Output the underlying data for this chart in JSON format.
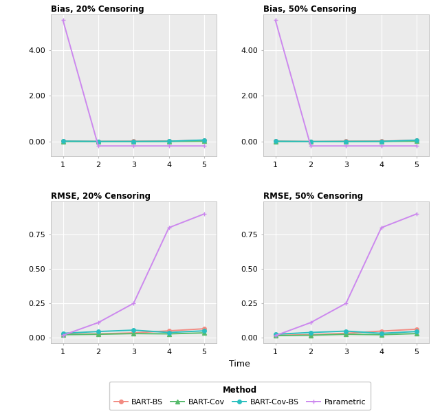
{
  "time": [
    1,
    2,
    3,
    4,
    5
  ],
  "bias_20": {
    "BART-BS": [
      0.005,
      0.0,
      0.005,
      0.01,
      0.05
    ],
    "BART-Cov": [
      -0.005,
      -0.01,
      -0.01,
      -0.005,
      0.005
    ],
    "BART-Cov-BS": [
      0.01,
      0.0,
      0.0,
      0.005,
      0.06
    ],
    "Parametric": [
      5.3,
      -0.2,
      -0.2,
      -0.2,
      -0.2
    ]
  },
  "bias_50": {
    "BART-BS": [
      0.005,
      -0.005,
      0.005,
      0.01,
      0.05
    ],
    "BART-Cov": [
      -0.005,
      -0.01,
      -0.01,
      -0.005,
      0.005
    ],
    "BART-Cov-BS": [
      0.005,
      -0.005,
      0.0,
      0.0,
      0.05
    ],
    "Parametric": [
      5.3,
      -0.2,
      -0.2,
      -0.2,
      -0.2
    ]
  },
  "rmse_20": {
    "BART-BS": [
      0.025,
      0.028,
      0.035,
      0.05,
      0.065
    ],
    "BART-Cov": [
      0.022,
      0.025,
      0.03,
      0.028,
      0.035
    ],
    "BART-Cov-BS": [
      0.032,
      0.045,
      0.055,
      0.038,
      0.05
    ],
    "Parametric": [
      0.018,
      0.11,
      0.25,
      0.8,
      0.9
    ]
  },
  "rmse_50": {
    "BART-BS": [
      0.018,
      0.022,
      0.032,
      0.048,
      0.062
    ],
    "BART-Cov": [
      0.015,
      0.018,
      0.025,
      0.022,
      0.03
    ],
    "BART-Cov-BS": [
      0.025,
      0.038,
      0.048,
      0.032,
      0.045
    ],
    "Parametric": [
      0.015,
      0.11,
      0.25,
      0.8,
      0.9
    ]
  },
  "colors": {
    "BART-BS": "#F28B82",
    "BART-Cov": "#57BB6C",
    "BART-Cov-BS": "#2ABFBF",
    "Parametric": "#CC88EE"
  },
  "markers": {
    "BART-BS": "o",
    "BART-Cov": "^",
    "BART-Cov-BS": "o",
    "Parametric": "+"
  },
  "linewidth": 1.4,
  "markersize": 4,
  "panel_bg": "#EBEBEB",
  "grid_color": "#FFFFFF",
  "titles": [
    "Bias, 20% Censoring",
    "Bias, 50% Censoring",
    "RMSE, 20% Censoring",
    "RMSE, 50% Censoring"
  ],
  "bias_ylim": [
    -0.65,
    5.55
  ],
  "bias_yticks": [
    0.0,
    2.0,
    4.0
  ],
  "bias_yticklabels": [
    "0.00",
    "2.00",
    "4.00"
  ],
  "rmse_ylim": [
    -0.04,
    0.99
  ],
  "rmse_yticks": [
    0.0,
    0.25,
    0.5,
    0.75
  ],
  "rmse_yticklabels": [
    "0.00",
    "0.25",
    "0.50",
    "0.75"
  ],
  "xlabel": "Time",
  "method_order": [
    "BART-BS",
    "BART-Cov",
    "BART-Cov-BS",
    "Parametric"
  ],
  "legend_label": "Method"
}
